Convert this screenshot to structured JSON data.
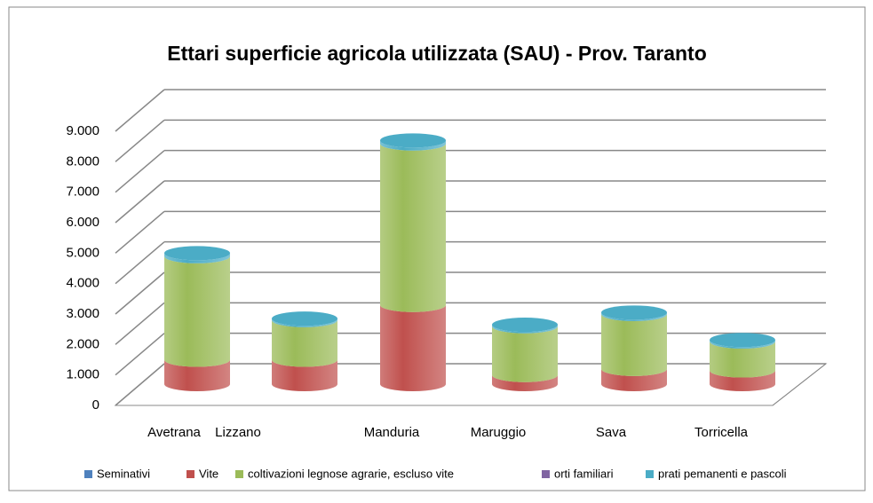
{
  "chart_data": {
    "type": "bar3d_stacked",
    "title": "Ettari superficie agricola utilizzata (SAU) - Prov. Taranto",
    "categories": [
      "Avetrana",
      "Lizzano",
      "Manduria",
      "Maruggio",
      "Sava",
      "Torricella"
    ],
    "series": [
      {
        "name": "Seminativi",
        "color": "#4f81bd",
        "values": [
          0,
          0,
          0,
          0,
          0,
          0
        ]
      },
      {
        "name": "Vite",
        "color": "#c0504d",
        "values": [
          800,
          800,
          2600,
          300,
          500,
          450
        ]
      },
      {
        "name": "coltivazioni legnose agrarie, escluso vite",
        "color": "#9bbb59",
        "values": [
          3400,
          1300,
          5300,
          1600,
          1800,
          950
        ]
      },
      {
        "name": "orti familiari",
        "color": "#8064a2",
        "values": [
          0,
          0,
          0,
          0,
          0,
          0
        ]
      },
      {
        "name": "prati pemanenti e pascoli",
        "color": "#4bacc6",
        "values": [
          100,
          50,
          100,
          50,
          50,
          50
        ]
      }
    ],
    "ylim": [
      0,
      9000
    ],
    "yticks": [
      0,
      {
        "value": 1000,
        "label": "1.000"
      },
      {
        "value": 2000,
        "label": "2.000"
      },
      {
        "value": 3000,
        "label": "3.000"
      },
      {
        "value": 4000,
        "label": "4.000"
      },
      {
        "value": 5000,
        "label": "5.000"
      },
      {
        "value": 6000,
        "label": "6.000"
      },
      {
        "value": 7000,
        "label": "7.000"
      },
      {
        "value": 8000,
        "label": "8.000"
      },
      {
        "value": 9000,
        "label": "9.000"
      }
    ],
    "grid": true,
    "legend": "bottom"
  }
}
